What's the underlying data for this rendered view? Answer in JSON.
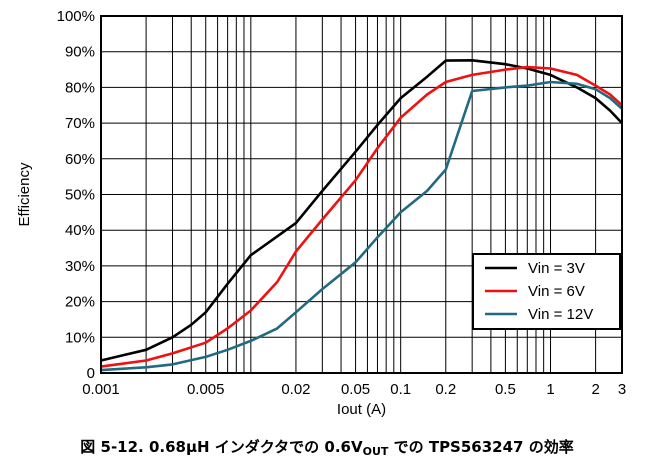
{
  "caption": {
    "prefix": "図 5-12. 0.68µH インダクタでの 0.6V",
    "subscript": "OUT",
    "suffix": " での TPS563247 の効率"
  },
  "chart_data": {
    "type": "line",
    "xlabel": "Iout (A)",
    "ylabel": "Efficiency",
    "xscale": "log",
    "xlim": [
      0.001,
      3
    ],
    "ylim": [
      0,
      100
    ],
    "x_ticks": [
      0.001,
      0.005,
      0.02,
      0.05,
      0.1,
      0.2,
      0.5,
      1,
      2,
      3
    ],
    "x_tick_labels": [
      "0.001",
      "0.005",
      "0.02",
      "0.05",
      "0.1",
      "0.2",
      "0.5",
      "1",
      "2",
      "3"
    ],
    "y_ticks": [
      0,
      10,
      20,
      30,
      40,
      50,
      60,
      70,
      80,
      90,
      100
    ],
    "y_tick_labels": [
      "0",
      "10%",
      "20%",
      "30%",
      "40%",
      "50%",
      "60%",
      "70%",
      "80%",
      "90%",
      "100%"
    ],
    "grid": true,
    "legend_position": "bottom-right",
    "series": [
      {
        "name": "Vin = 3V",
        "color": "#000000",
        "points": [
          [
            0.001,
            3.5
          ],
          [
            0.002,
            6.5
          ],
          [
            0.003,
            10
          ],
          [
            0.004,
            13.5
          ],
          [
            0.005,
            17
          ],
          [
            0.007,
            25
          ],
          [
            0.01,
            33
          ],
          [
            0.02,
            42
          ],
          [
            0.03,
            51
          ],
          [
            0.05,
            62
          ],
          [
            0.07,
            69.5
          ],
          [
            0.1,
            77
          ],
          [
            0.15,
            83
          ],
          [
            0.2,
            87.5
          ],
          [
            0.3,
            87.6
          ],
          [
            0.5,
            86.5
          ],
          [
            0.7,
            85.3
          ],
          [
            1,
            83.5
          ],
          [
            1.5,
            80
          ],
          [
            2,
            77
          ],
          [
            2.5,
            73.5
          ],
          [
            3,
            70
          ]
        ]
      },
      {
        "name": "Vin = 6V",
        "color": "#ee1111",
        "points": [
          [
            0.001,
            1.8
          ],
          [
            0.002,
            3.5
          ],
          [
            0.003,
            5.5
          ],
          [
            0.005,
            8.5
          ],
          [
            0.007,
            12.5
          ],
          [
            0.01,
            17.5
          ],
          [
            0.015,
            25.5
          ],
          [
            0.02,
            34
          ],
          [
            0.03,
            43
          ],
          [
            0.05,
            54
          ],
          [
            0.07,
            63
          ],
          [
            0.1,
            71.5
          ],
          [
            0.15,
            78
          ],
          [
            0.2,
            81.5
          ],
          [
            0.3,
            83.5
          ],
          [
            0.5,
            85
          ],
          [
            0.7,
            85.7
          ],
          [
            1,
            85.3
          ],
          [
            1.5,
            83.5
          ],
          [
            2,
            80.5
          ],
          [
            2.5,
            78
          ],
          [
            3,
            75
          ]
        ]
      },
      {
        "name": "Vin = 12V",
        "color": "#226a80",
        "points": [
          [
            0.001,
            0.8
          ],
          [
            0.002,
            1.6
          ],
          [
            0.003,
            2.4
          ],
          [
            0.005,
            4.5
          ],
          [
            0.007,
            6.5
          ],
          [
            0.01,
            9
          ],
          [
            0.015,
            12.5
          ],
          [
            0.02,
            17
          ],
          [
            0.03,
            23.5
          ],
          [
            0.05,
            31
          ],
          [
            0.07,
            38
          ],
          [
            0.1,
            45
          ],
          [
            0.15,
            51
          ],
          [
            0.2,
            57
          ],
          [
            0.3,
            79
          ],
          [
            0.5,
            80
          ],
          [
            0.7,
            80.5
          ],
          [
            1,
            81.5
          ],
          [
            1.5,
            81
          ],
          [
            2,
            79.5
          ],
          [
            2.5,
            77
          ],
          [
            3,
            74
          ]
        ]
      }
    ]
  }
}
